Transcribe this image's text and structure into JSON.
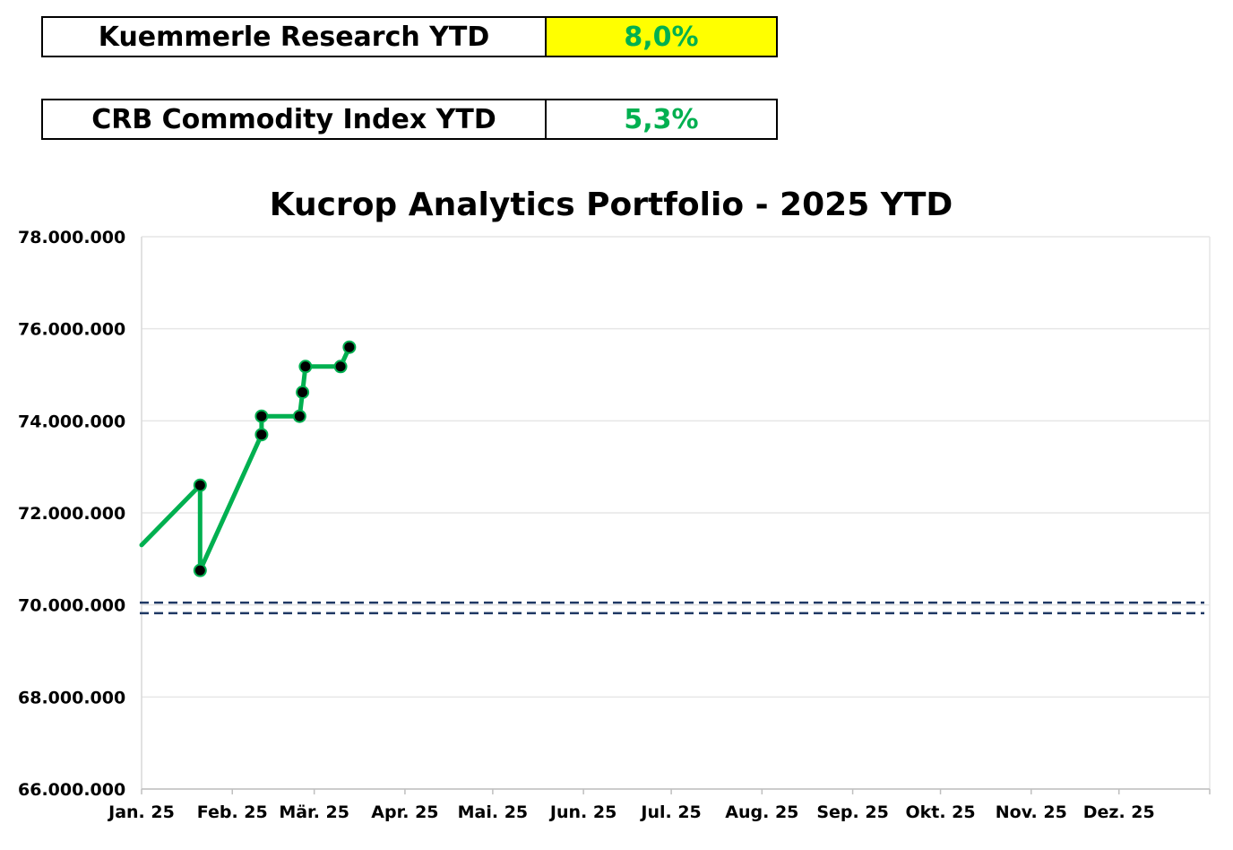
{
  "kpis": [
    {
      "label": "Kuemmerle Research YTD",
      "value": "8,0%",
      "value_color": "#00b050",
      "value_bg": "#ffff00"
    },
    {
      "label": "CRB Commodity Index YTD",
      "value": "5,3%",
      "value_color": "#00b050",
      "value_bg": "#ffffff"
    }
  ],
  "chart_data": {
    "type": "line",
    "title": "Kucrop Analytics Portfolio - 2025 YTD",
    "xlabel": "",
    "ylabel": "",
    "ylim": [
      66000000,
      78000000
    ],
    "yticks": [
      66000000,
      68000000,
      70000000,
      72000000,
      74000000,
      76000000,
      78000000
    ],
    "ytick_labels": [
      "66.000.000",
      "68.000.000",
      "70.000.000",
      "72.000.000",
      "74.000.000",
      "76.000.000",
      "78.000.000"
    ],
    "xlim": [
      "2025-01-01",
      "2026-01-01"
    ],
    "xtick_labels": [
      "Jan. 25",
      "Feb. 25",
      "Mär. 25",
      "Apr. 25",
      "Mai. 25",
      "Jun. 25",
      "Jul. 25",
      "Aug. 25",
      "Sep. 25",
      "Okt. 25",
      "Nov. 25",
      "Dez. 25"
    ],
    "grid": true,
    "series": [
      {
        "color": "#00b050",
        "marker_color": "#000000",
        "points": [
          {
            "x": "2025-01-01",
            "y": 71300000,
            "marker": false
          },
          {
            "x": "2025-01-21",
            "y": 72600000,
            "marker": true
          },
          {
            "x": "2025-01-21",
            "y": 70750000,
            "marker": true
          },
          {
            "x": "2025-02-11",
            "y": 73700000,
            "marker": true
          },
          {
            "x": "2025-02-11",
            "y": 74100000,
            "marker": true
          },
          {
            "x": "2025-02-24",
            "y": 74100000,
            "marker": true
          },
          {
            "x": "2025-02-25",
            "y": 74620000,
            "marker": true
          },
          {
            "x": "2025-02-26",
            "y": 75180000,
            "marker": true
          },
          {
            "x": "2025-03-10",
            "y": 75180000,
            "marker": true
          },
          {
            "x": "2025-03-13",
            "y": 75600000,
            "marker": true
          }
        ]
      }
    ],
    "reference_lines": [
      {
        "y": 70050000,
        "color": "#1f3864",
        "style": "dashed"
      },
      {
        "y": 69820000,
        "color": "#1f3864",
        "style": "dashed"
      }
    ]
  }
}
